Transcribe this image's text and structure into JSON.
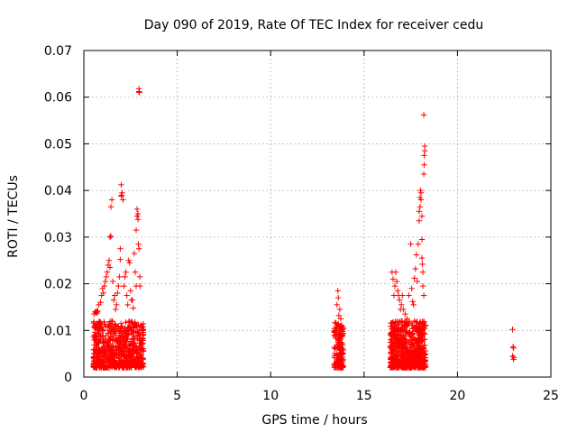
{
  "chart_data": {
    "type": "scatter",
    "title": "Day 090 of 2019, Rate Of TEC Index for receiver cedu",
    "xlabel": "GPS time / hours",
    "ylabel": "ROTI / TECUs",
    "xlim": [
      0,
      25
    ],
    "ylim": [
      0,
      0.07
    ],
    "xticks": [
      0,
      5,
      10,
      15,
      20,
      25
    ],
    "yticks": [
      0,
      0.01,
      0.02,
      0.03,
      0.04,
      0.05,
      0.06,
      0.07
    ],
    "xtick_labels": [
      "0",
      "5",
      "10",
      "15",
      "20",
      "25"
    ],
    "ytick_labels": [
      "0",
      "0.01",
      "0.02",
      "0.03",
      "0.04",
      "0.05",
      "0.06",
      "0.07"
    ],
    "grid": true,
    "marker": "plus",
    "series_color": "#ff0000",
    "clusters": [
      {
        "x_range": [
          0.5,
          3.2
        ],
        "y_range": [
          0.002,
          0.012
        ],
        "count": 700
      },
      {
        "x_range": [
          13.4,
          13.9
        ],
        "y_range": [
          0.002,
          0.012
        ],
        "count": 160
      },
      {
        "x_range": [
          16.4,
          18.3
        ],
        "y_range": [
          0.002,
          0.012
        ],
        "count": 650
      }
    ],
    "points": [
      [
        0.55,
        0.0135
      ],
      [
        0.6,
        0.014
      ],
      [
        0.65,
        0.0138
      ],
      [
        0.7,
        0.0142
      ],
      [
        0.72,
        0.0137
      ],
      [
        0.75,
        0.0141
      ],
      [
        0.8,
        0.0155
      ],
      [
        0.9,
        0.016
      ],
      [
        0.95,
        0.0175
      ],
      [
        1.0,
        0.019
      ],
      [
        1.05,
        0.018
      ],
      [
        1.1,
        0.0195
      ],
      [
        1.15,
        0.0205
      ],
      [
        1.2,
        0.0215
      ],
      [
        1.25,
        0.0225
      ],
      [
        1.3,
        0.024
      ],
      [
        1.35,
        0.025
      ],
      [
        1.4,
        0.0235
      ],
      [
        1.4,
        0.03
      ],
      [
        1.45,
        0.0302
      ],
      [
        1.45,
        0.0365
      ],
      [
        1.5,
        0.038
      ],
      [
        1.55,
        0.0205
      ],
      [
        1.6,
        0.0165
      ],
      [
        1.65,
        0.0175
      ],
      [
        1.7,
        0.0145
      ],
      [
        1.75,
        0.0155
      ],
      [
        1.8,
        0.018
      ],
      [
        1.85,
        0.0195
      ],
      [
        1.9,
        0.0215
      ],
      [
        1.95,
        0.0252
      ],
      [
        1.95,
        0.0275
      ],
      [
        2.0,
        0.0388
      ],
      [
        2.02,
        0.039
      ],
      [
        2.05,
        0.0395
      ],
      [
        2.0,
        0.0412
      ],
      [
        2.1,
        0.038
      ],
      [
        2.15,
        0.0195
      ],
      [
        2.2,
        0.0215
      ],
      [
        2.25,
        0.0225
      ],
      [
        2.3,
        0.0175
      ],
      [
        2.35,
        0.0155
      ],
      [
        2.4,
        0.025
      ],
      [
        2.45,
        0.0245
      ],
      [
        2.5,
        0.0185
      ],
      [
        2.55,
        0.0165
      ],
      [
        2.6,
        0.0165
      ],
      [
        2.65,
        0.0148
      ],
      [
        2.7,
        0.0265
      ],
      [
        2.75,
        0.0225
      ],
      [
        2.8,
        0.0195
      ],
      [
        2.8,
        0.0315
      ],
      [
        2.85,
        0.0345
      ],
      [
        2.9,
        0.035
      ],
      [
        2.85,
        0.036
      ],
      [
        2.9,
        0.0338
      ],
      [
        2.92,
        0.0285
      ],
      [
        2.95,
        0.0275
      ],
      [
        3.0,
        0.0215
      ],
      [
        3.0,
        0.0195
      ],
      [
        2.95,
        0.0618
      ],
      [
        2.95,
        0.0612
      ],
      [
        2.97,
        0.061
      ],
      [
        13.6,
        0.0185
      ],
      [
        13.62,
        0.017
      ],
      [
        13.55,
        0.0155
      ],
      [
        13.7,
        0.0145
      ],
      [
        13.65,
        0.0132
      ],
      [
        13.75,
        0.0125
      ],
      [
        16.5,
        0.0225
      ],
      [
        16.55,
        0.021
      ],
      [
        16.6,
        0.0175
      ],
      [
        16.65,
        0.0195
      ],
      [
        16.7,
        0.0225
      ],
      [
        16.75,
        0.0205
      ],
      [
        16.8,
        0.0185
      ],
      [
        16.85,
        0.0175
      ],
      [
        16.9,
        0.0165
      ],
      [
        16.95,
        0.0145
      ],
      [
        17.0,
        0.0155
      ],
      [
        17.05,
        0.0175
      ],
      [
        17.1,
        0.0145
      ],
      [
        17.2,
        0.0135
      ],
      [
        17.3,
        0.0125
      ],
      [
        17.4,
        0.0175
      ],
      [
        17.5,
        0.0285
      ],
      [
        17.55,
        0.019
      ],
      [
        17.6,
        0.0162
      ],
      [
        17.65,
        0.0155
      ],
      [
        17.7,
        0.0212
      ],
      [
        17.75,
        0.0232
      ],
      [
        17.8,
        0.0262
      ],
      [
        17.85,
        0.0205
      ],
      [
        17.9,
        0.0285
      ],
      [
        17.95,
        0.0335
      ],
      [
        17.95,
        0.0355
      ],
      [
        18.0,
        0.0365
      ],
      [
        18.0,
        0.0385
      ],
      [
        18.02,
        0.04
      ],
      [
        18.05,
        0.0395
      ],
      [
        18.05,
        0.038
      ],
      [
        18.1,
        0.0345
      ],
      [
        18.1,
        0.0295
      ],
      [
        18.1,
        0.0255
      ],
      [
        18.12,
        0.0242
      ],
      [
        18.15,
        0.0225
      ],
      [
        18.15,
        0.0195
      ],
      [
        18.2,
        0.0175
      ],
      [
        18.2,
        0.0435
      ],
      [
        18.22,
        0.0455
      ],
      [
        18.22,
        0.0475
      ],
      [
        18.25,
        0.0485
      ],
      [
        18.25,
        0.0495
      ],
      [
        18.2,
        0.0562
      ],
      [
        22.95,
        0.0102
      ],
      [
        22.98,
        0.0065
      ],
      [
        23.0,
        0.0062
      ],
      [
        22.95,
        0.0045
      ],
      [
        23.02,
        0.0042
      ],
      [
        23.0,
        0.0038
      ]
    ]
  }
}
